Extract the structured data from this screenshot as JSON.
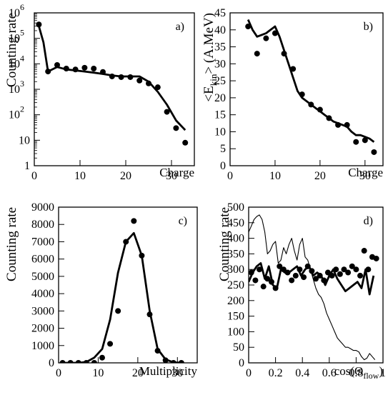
{
  "chart_data": [
    {
      "id": "a",
      "type": "line+scatter",
      "panel_label": "a)",
      "xlabel": "Charge",
      "ylabel": "Counting rate",
      "xlim": [
        0,
        35
      ],
      "ylim": [
        1,
        1000000
      ],
      "yscale": "log",
      "xticks": [
        0,
        10,
        20,
        30
      ],
      "yticks": [
        {
          "v": 1,
          "base": "1",
          "exp": ""
        },
        {
          "v": 10,
          "base": "10",
          "exp": ""
        },
        {
          "v": 100,
          "base": "10",
          "exp": "2"
        },
        {
          "v": 1000,
          "base": "10",
          "exp": "3"
        },
        {
          "v": 10000,
          "base": "10",
          "exp": "4"
        },
        {
          "v": 100000,
          "base": "10",
          "exp": "5"
        },
        {
          "v": 1000000,
          "base": "10",
          "exp": "6"
        }
      ],
      "line": {
        "x": [
          1,
          2,
          3,
          5,
          7,
          9,
          11,
          13,
          15,
          17,
          19,
          21,
          23,
          25,
          27,
          29,
          31,
          33
        ],
        "y": [
          300000,
          70000,
          5000,
          7500,
          6000,
          5500,
          5000,
          4500,
          4000,
          3500,
          3200,
          3200,
          3200,
          2000,
          800,
          250,
          60,
          25
        ]
      },
      "points": {
        "x": [
          1,
          3,
          5,
          7,
          9,
          11,
          13,
          15,
          17,
          19,
          21,
          23,
          25,
          27,
          29,
          31,
          33
        ],
        "y": [
          350000,
          5000,
          9000,
          6500,
          6000,
          7000,
          6500,
          4800,
          3200,
          3000,
          3000,
          2200,
          1700,
          1200,
          130,
          30,
          8
        ]
      }
    },
    {
      "id": "b",
      "type": "line+scatter",
      "panel_label": "b)",
      "xlabel": "Charge",
      "ylabel_parts": [
        "<E",
        "kin",
        "> (A.MeV)"
      ],
      "xlim": [
        0,
        34
      ],
      "ylim": [
        0,
        45
      ],
      "xticks": [
        0,
        10,
        20,
        30
      ],
      "yticks": [
        0,
        5,
        10,
        15,
        20,
        25,
        30,
        35,
        40,
        45
      ],
      "line": {
        "x": [
          4,
          5,
          6,
          7,
          8,
          9,
          10,
          11,
          12,
          13,
          14,
          15,
          16,
          17,
          18,
          19,
          20,
          21,
          22,
          23,
          24,
          25,
          26,
          27,
          28,
          29,
          30,
          31,
          32
        ],
        "y": [
          43,
          40,
          38,
          38.5,
          39,
          40,
          41,
          38,
          34,
          30,
          26,
          22,
          20,
          19,
          18,
          17,
          16,
          15,
          14,
          13,
          12.5,
          12,
          11.5,
          10,
          9,
          9,
          8.5,
          8,
          7
        ]
      },
      "points": {
        "x": [
          4,
          6,
          8,
          10,
          12,
          14,
          16,
          18,
          20,
          22,
          24,
          26,
          28,
          30,
          32
        ],
        "y": [
          41,
          33,
          37.5,
          39,
          33,
          28.5,
          21,
          18,
          16.5,
          14,
          12,
          12,
          7,
          7.5,
          4
        ]
      }
    },
    {
      "id": "c",
      "type": "line+scatter",
      "panel_label": "c)",
      "xlabel": "Multiplicity",
      "ylabel": "Counting rate",
      "xlim": [
        0,
        35
      ],
      "ylim": [
        0,
        9000
      ],
      "xticks": [
        0,
        10,
        20,
        30
      ],
      "yticks": [
        0,
        1000,
        2000,
        3000,
        4000,
        5000,
        6000,
        7000,
        8000,
        9000
      ],
      "line": {
        "x": [
          1,
          3,
          5,
          7,
          9,
          11,
          13,
          15,
          17,
          19,
          21,
          23,
          25,
          27,
          29,
          31
        ],
        "y": [
          0,
          0,
          0,
          50,
          300,
          800,
          2500,
          5200,
          7000,
          7500,
          6200,
          3000,
          800,
          200,
          30,
          0
        ]
      },
      "points": {
        "x": [
          1,
          3,
          5,
          7,
          9,
          11,
          13,
          15,
          17,
          19,
          21,
          23,
          25,
          27,
          29,
          31
        ],
        "y": [
          0,
          0,
          0,
          0,
          0,
          300,
          1100,
          3000,
          7000,
          8200,
          6200,
          2800,
          700,
          150,
          0,
          0
        ]
      }
    },
    {
      "id": "d",
      "type": "line+scatter",
      "panel_label": "d)",
      "xlabel_parts": [
        "cos(Θ",
        "flow",
        ")"
      ],
      "ylabel": "Counting rate",
      "xlim": [
        0,
        1
      ],
      "ylim": [
        0,
        500
      ],
      "xticks": [
        0,
        0.2,
        0.4,
        0.6,
        0.8,
        1
      ],
      "xtick_labels": [
        "0",
        "0.2",
        "0.4",
        "0.6",
        "0.8",
        "1"
      ],
      "yticks": [
        0,
        50,
        100,
        150,
        200,
        250,
        300,
        350,
        400,
        450,
        500
      ],
      "thin_line": {
        "x": [
          0,
          0.02,
          0.04,
          0.06,
          0.08,
          0.1,
          0.12,
          0.14,
          0.16,
          0.18,
          0.2,
          0.22,
          0.24,
          0.26,
          0.28,
          0.3,
          0.32,
          0.34,
          0.36,
          0.38,
          0.4,
          0.42,
          0.44,
          0.46,
          0.48,
          0.5,
          0.52,
          0.54,
          0.56,
          0.58,
          0.6,
          0.62,
          0.64,
          0.66,
          0.68,
          0.7,
          0.72,
          0.74,
          0.76,
          0.78,
          0.8,
          0.82,
          0.84,
          0.86,
          0.88,
          0.9,
          0.92,
          0.94
        ],
        "y": [
          420,
          440,
          460,
          470,
          475,
          460,
          420,
          350,
          360,
          380,
          390,
          320,
          330,
          370,
          350,
          380,
          400,
          360,
          330,
          380,
          400,
          340,
          330,
          300,
          270,
          240,
          220,
          210,
          190,
          160,
          140,
          120,
          100,
          80,
          70,
          60,
          50,
          50,
          45,
          40,
          40,
          35,
          20,
          10,
          15,
          30,
          20,
          10
        ]
      },
      "thick_line": {
        "x": [
          0,
          0.03,
          0.06,
          0.09,
          0.12,
          0.15,
          0.18,
          0.21,
          0.24,
          0.27,
          0.3,
          0.33,
          0.36,
          0.39,
          0.42,
          0.45,
          0.48,
          0.51,
          0.54,
          0.57,
          0.6,
          0.63,
          0.66,
          0.69,
          0.72,
          0.75,
          0.78,
          0.81,
          0.84,
          0.87,
          0.9,
          0.93
        ],
        "y": [
          260,
          290,
          310,
          320,
          270,
          310,
          250,
          240,
          300,
          290,
          290,
          300,
          310,
          280,
          300,
          310,
          280,
          290,
          280,
          250,
          280,
          300,
          270,
          250,
          230,
          240,
          250,
          260,
          240,
          300,
          220,
          280
        ]
      },
      "points": {
        "x": [
          0.02,
          0.05,
          0.08,
          0.11,
          0.14,
          0.17,
          0.2,
          0.23,
          0.26,
          0.29,
          0.32,
          0.35,
          0.38,
          0.41,
          0.44,
          0.47,
          0.5,
          0.53,
          0.56,
          0.59,
          0.62,
          0.65,
          0.68,
          0.71,
          0.74,
          0.77,
          0.8,
          0.83,
          0.86,
          0.89,
          0.92,
          0.95
        ],
        "y": [
          290,
          265,
          300,
          245,
          270,
          260,
          240,
          310,
          300,
          290,
          265,
          280,
          300,
          275,
          310,
          295,
          270,
          280,
          265,
          290,
          280,
          300,
          285,
          300,
          290,
          310,
          300,
          280,
          360,
          300,
          340,
          335
        ]
      }
    }
  ]
}
